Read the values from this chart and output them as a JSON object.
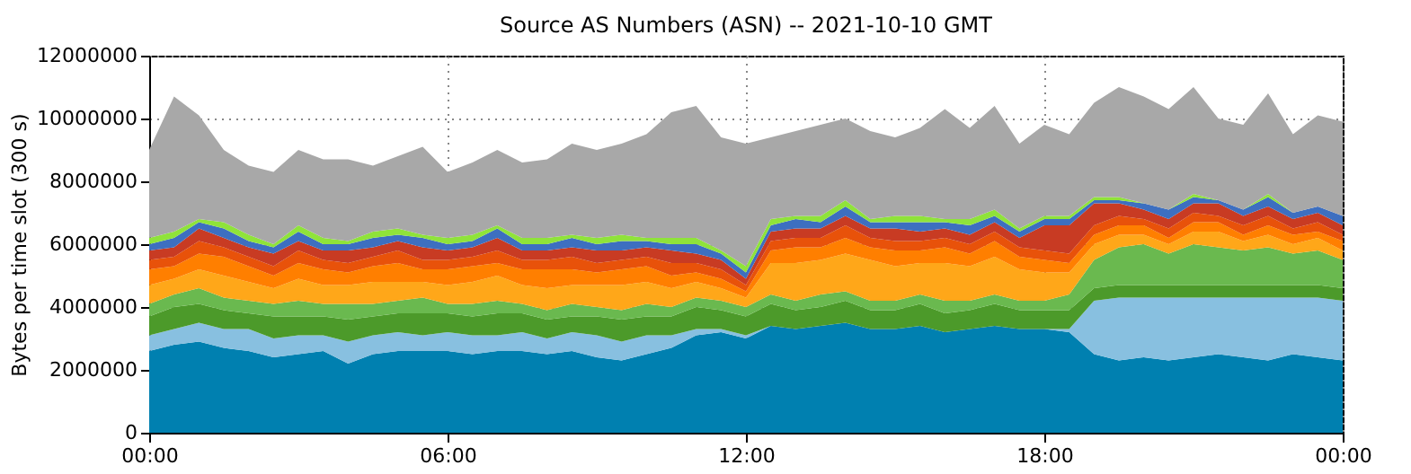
{
  "chart_data": {
    "type": "area",
    "title": "Source AS Numbers (ASN) -- 2021-10-10 GMT",
    "ylabel": "Bytes per time slot (300 s)",
    "stacked": true,
    "grid": true,
    "x": [
      0,
      0.5,
      1,
      1.5,
      2,
      2.5,
      3,
      3.5,
      4,
      4.5,
      5,
      5.5,
      6,
      6.5,
      7,
      7.5,
      8,
      8.5,
      9,
      9.5,
      10,
      10.5,
      11,
      11.5,
      12,
      12.5,
      13,
      13.5,
      14,
      14.5,
      15,
      15.5,
      16,
      16.5,
      17,
      17.5,
      18,
      18.5,
      19,
      19.5,
      20,
      20.5,
      21,
      21.5,
      22,
      22.5,
      23,
      23.5,
      24
    ],
    "xlim": [
      0,
      24
    ],
    "xticks": [
      {
        "value": 0,
        "label": "00:00"
      },
      {
        "value": 6,
        "label": "06:00"
      },
      {
        "value": 12,
        "label": "12:00"
      },
      {
        "value": 18,
        "label": "18:00"
      },
      {
        "value": 24,
        "label": "00:00"
      }
    ],
    "ylim": [
      0,
      12000000
    ],
    "yticks": [
      0,
      2000000,
      4000000,
      6000000,
      8000000,
      10000000,
      12000000
    ],
    "series": [
      {
        "color": "#0080b0",
        "values": [
          2600000,
          2800000,
          2900000,
          2700000,
          2600000,
          2400000,
          2500000,
          2600000,
          2200000,
          2500000,
          2600000,
          2600000,
          2600000,
          2500000,
          2600000,
          2600000,
          2500000,
          2600000,
          2400000,
          2300000,
          2500000,
          2700000,
          3100000,
          3200000,
          3000000,
          3400000,
          3300000,
          3400000,
          3500000,
          3300000,
          3300000,
          3400000,
          3200000,
          3300000,
          3400000,
          3300000,
          3300000,
          3200000,
          2500000,
          2300000,
          2400000,
          2300000,
          2400000,
          2500000,
          2400000,
          2300000,
          2500000,
          2400000,
          2300000
        ]
      },
      {
        "color": "#88c0e0",
        "values": [
          500000,
          500000,
          600000,
          600000,
          700000,
          600000,
          600000,
          500000,
          700000,
          600000,
          600000,
          500000,
          600000,
          600000,
          500000,
          600000,
          500000,
          600000,
          700000,
          600000,
          600000,
          400000,
          200000,
          100000,
          100000,
          0,
          0,
          0,
          0,
          0,
          0,
          0,
          0,
          0,
          0,
          0,
          0,
          100000,
          1700000,
          2000000,
          1900000,
          2000000,
          1900000,
          1800000,
          1900000,
          2000000,
          1800000,
          1900000,
          1900000
        ]
      },
      {
        "color": "#4c9a2a",
        "values": [
          600000,
          700000,
          600000,
          600000,
          500000,
          700000,
          600000,
          600000,
          700000,
          600000,
          600000,
          700000,
          600000,
          600000,
          700000,
          600000,
          600000,
          500000,
          600000,
          700000,
          600000,
          600000,
          700000,
          600000,
          600000,
          700000,
          600000,
          600000,
          700000,
          600000,
          600000,
          700000,
          600000,
          600000,
          700000,
          600000,
          600000,
          600000,
          400000,
          400000,
          400000,
          400000,
          400000,
          400000,
          400000,
          400000,
          400000,
          400000,
          400000
        ]
      },
      {
        "color": "#6ab94f",
        "values": [
          400000,
          400000,
          500000,
          400000,
          400000,
          400000,
          500000,
          400000,
          500000,
          400000,
          400000,
          500000,
          300000,
          400000,
          400000,
          300000,
          300000,
          400000,
          300000,
          300000,
          400000,
          300000,
          300000,
          300000,
          300000,
          300000,
          300000,
          400000,
          300000,
          300000,
          300000,
          300000,
          400000,
          300000,
          300000,
          300000,
          300000,
          500000,
          900000,
          1200000,
          1300000,
          1000000,
          1300000,
          1200000,
          1100000,
          1200000,
          1000000,
          1100000,
          900000
        ]
      },
      {
        "color": "#ffa719",
        "values": [
          600000,
          500000,
          600000,
          700000,
          600000,
          500000,
          700000,
          600000,
          600000,
          700000,
          600000,
          500000,
          600000,
          700000,
          800000,
          600000,
          700000,
          600000,
          700000,
          800000,
          700000,
          600000,
          500000,
          400000,
          300000,
          1000000,
          1200000,
          1100000,
          1200000,
          1300000,
          1100000,
          1000000,
          1200000,
          1100000,
          1200000,
          1000000,
          900000,
          700000,
          500000,
          400000,
          300000,
          300000,
          400000,
          500000,
          300000,
          400000,
          300000,
          400000,
          300000
        ]
      },
      {
        "color": "#ff7f00",
        "values": [
          500000,
          400000,
          500000,
          600000,
          500000,
          400000,
          500000,
          500000,
          400000,
          500000,
          600000,
          400000,
          500000,
          500000,
          400000,
          500000,
          600000,
          500000,
          400000,
          500000,
          500000,
          400000,
          300000,
          300000,
          200000,
          400000,
          500000,
          400000,
          500000,
          400000,
          500000,
          400000,
          500000,
          400000,
          500000,
          400000,
          400000,
          300000,
          300000,
          300000,
          300000,
          200000,
          300000,
          300000,
          200000,
          300000,
          300000,
          200000,
          300000
        ]
      },
      {
        "color": "#e8520a",
        "values": [
          300000,
          300000,
          400000,
          300000,
          300000,
          300000,
          400000,
          300000,
          300000,
          300000,
          400000,
          300000,
          300000,
          300000,
          400000,
          300000,
          300000,
          400000,
          300000,
          300000,
          300000,
          400000,
          300000,
          300000,
          200000,
          300000,
          300000,
          300000,
          400000,
          300000,
          300000,
          300000,
          300000,
          300000,
          300000,
          300000,
          300000,
          300000,
          300000,
          300000,
          200000,
          300000,
          300000,
          200000,
          300000,
          300000,
          200000,
          300000,
          200000
        ]
      },
      {
        "color": "#c83b23",
        "values": [
          300000,
          300000,
          400000,
          300000,
          300000,
          400000,
          300000,
          300000,
          400000,
          300000,
          300000,
          400000,
          300000,
          300000,
          400000,
          300000,
          300000,
          300000,
          400000,
          300000,
          300000,
          400000,
          300000,
          300000,
          200000,
          300000,
          300000,
          300000,
          300000,
          300000,
          400000,
          300000,
          300000,
          300000,
          300000,
          300000,
          800000,
          900000,
          700000,
          400000,
          300000,
          300000,
          300000,
          400000,
          300000,
          300000,
          300000,
          300000,
          300000
        ]
      },
      {
        "color": "#3d6fc0",
        "values": [
          200000,
          300000,
          200000,
          300000,
          200000,
          200000,
          300000,
          200000,
          200000,
          300000,
          200000,
          300000,
          200000,
          200000,
          300000,
          200000,
          200000,
          300000,
          200000,
          300000,
          200000,
          200000,
          300000,
          200000,
          200000,
          200000,
          300000,
          200000,
          300000,
          200000,
          200000,
          300000,
          200000,
          300000,
          200000,
          200000,
          200000,
          200000,
          100000,
          100000,
          200000,
          300000,
          200000,
          100000,
          200000,
          300000,
          200000,
          200000,
          300000
        ]
      },
      {
        "color": "#8fe33a",
        "values": [
          200000,
          200000,
          100000,
          200000,
          200000,
          100000,
          200000,
          200000,
          100000,
          200000,
          200000,
          100000,
          200000,
          200000,
          100000,
          200000,
          200000,
          100000,
          200000,
          200000,
          100000,
          200000,
          200000,
          100000,
          200000,
          200000,
          100000,
          200000,
          200000,
          100000,
          200000,
          200000,
          100000,
          200000,
          200000,
          100000,
          100000,
          100000,
          100000,
          100000,
          0,
          0,
          100000,
          0,
          0,
          100000,
          0,
          0,
          0
        ]
      },
      {
        "color": "#a8a8a8",
        "values": [
          2800000,
          4300000,
          3300000,
          2300000,
          2200000,
          2300000,
          2400000,
          2500000,
          2600000,
          2100000,
          2300000,
          2800000,
          2100000,
          2300000,
          2400000,
          2400000,
          2500000,
          2900000,
          2800000,
          2900000,
          3300000,
          4000000,
          4200000,
          3600000,
          3900000,
          2600000,
          2700000,
          2900000,
          2600000,
          2800000,
          2500000,
          2800000,
          3500000,
          2900000,
          3300000,
          2700000,
          2900000,
          2600000,
          3000000,
          3500000,
          3400000,
          3200000,
          3400000,
          2600000,
          2700000,
          3200000,
          2500000,
          2900000,
          3000000
        ]
      }
    ]
  }
}
